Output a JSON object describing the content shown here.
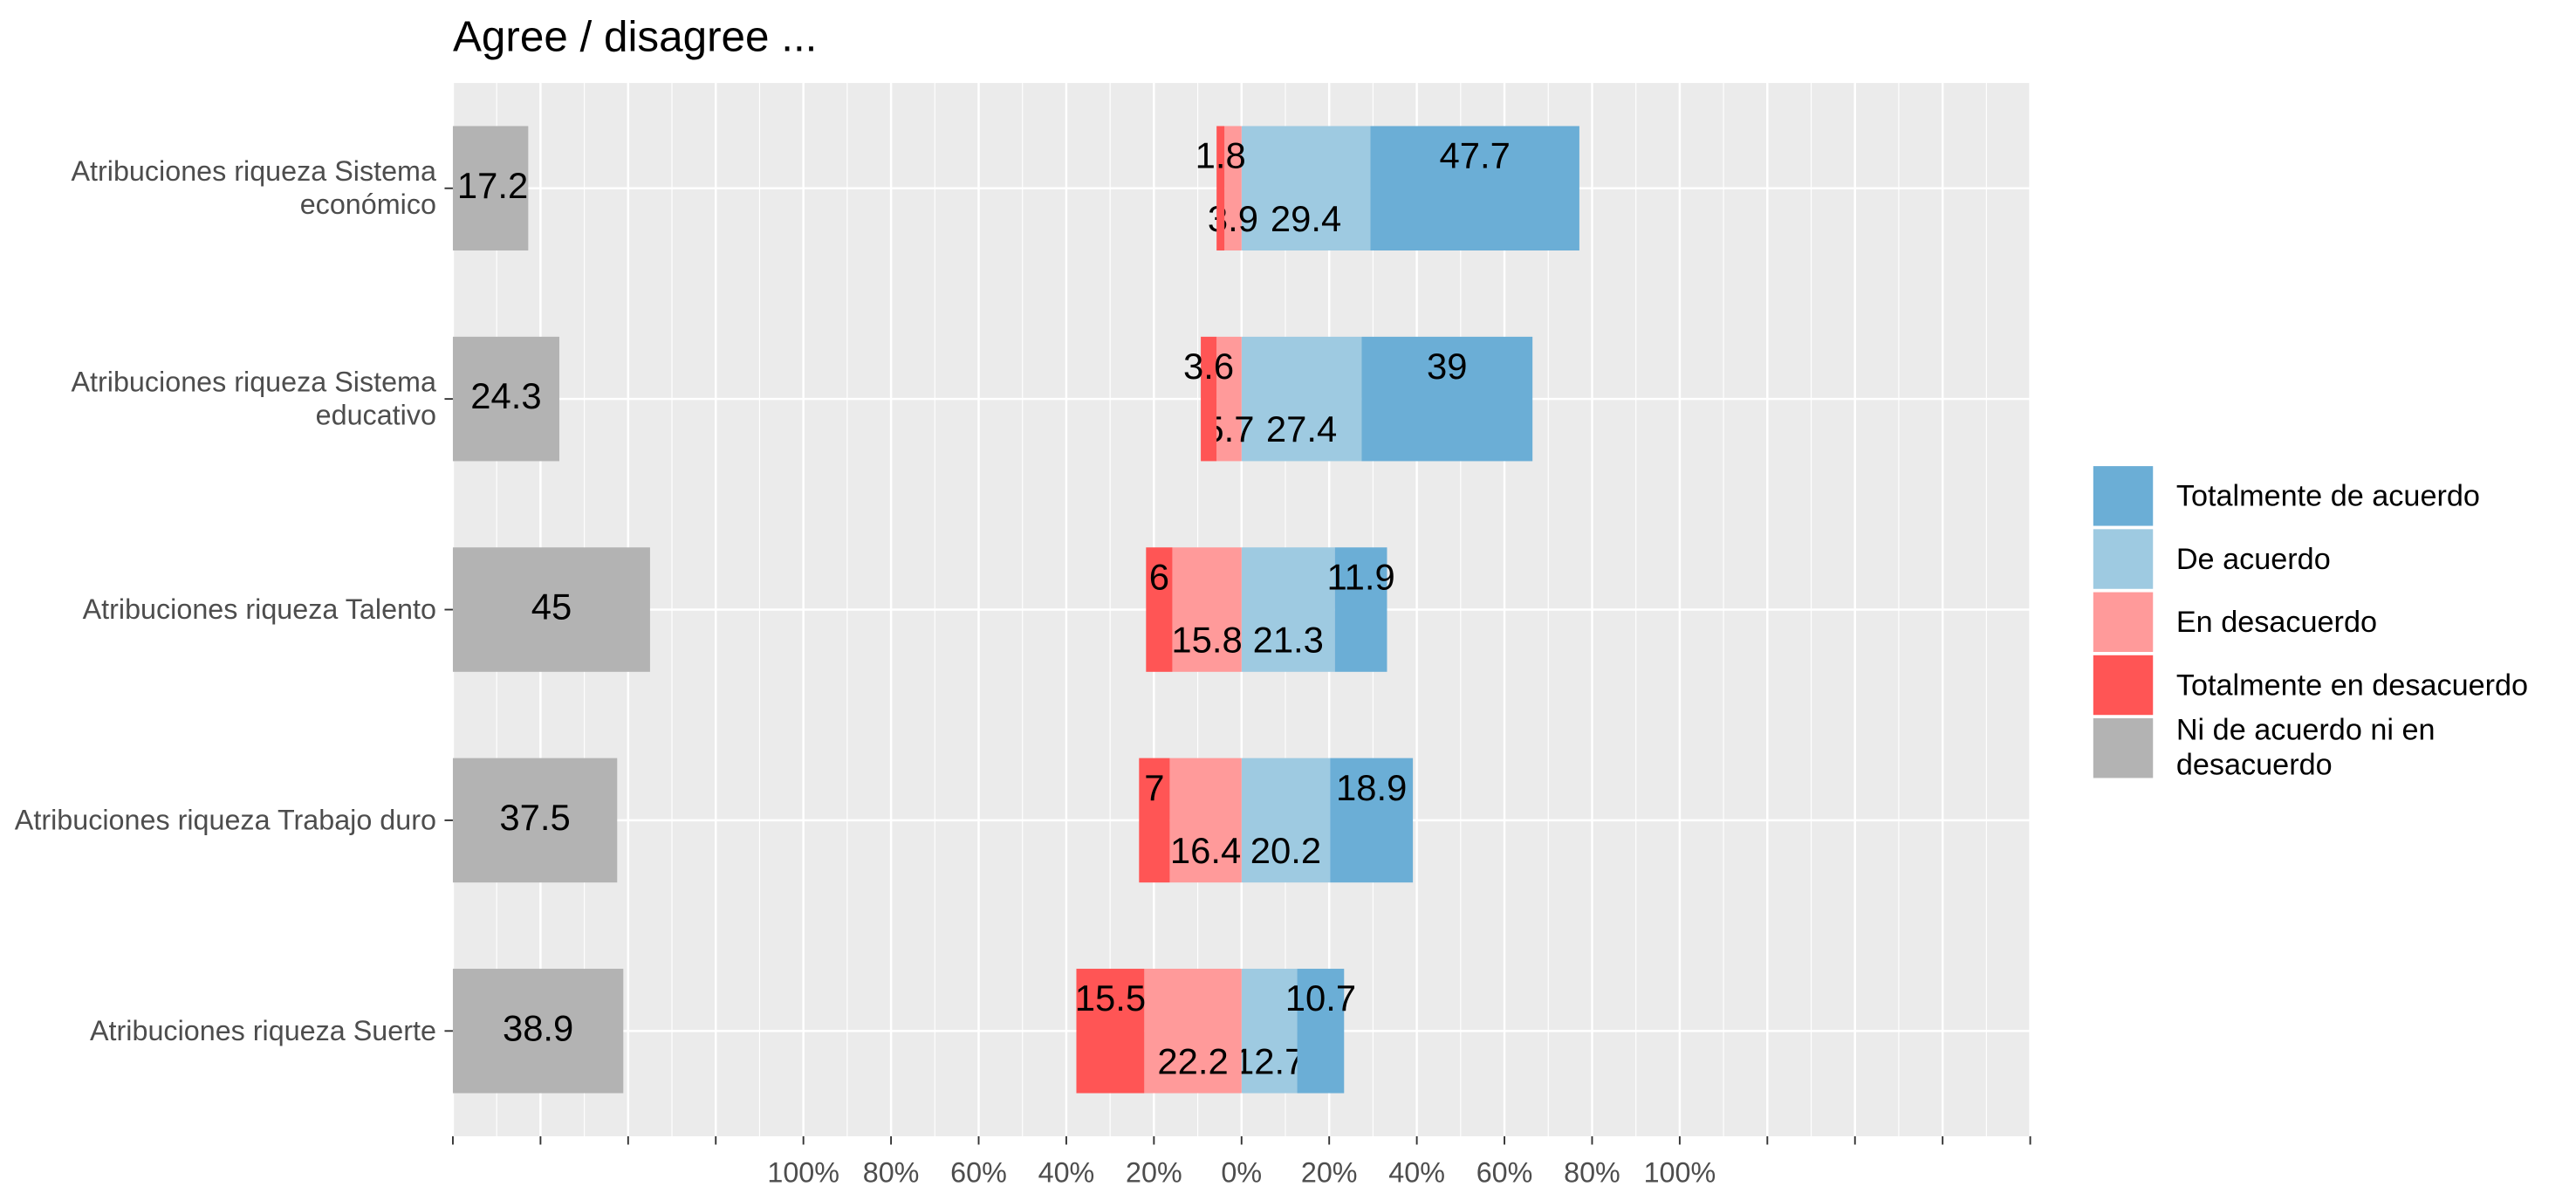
{
  "chart_data": {
    "type": "likert",
    "title": "Agree / disagree ...",
    "categories": [
      "Atribuciones riqueza Sistema económico",
      "Atribuciones riqueza Sistema educativo",
      "Atribuciones riqueza Talento",
      "Atribuciones riqueza Trabajo duro",
      "Atribuciones riqueza Suerte"
    ],
    "series": [
      {
        "name": "Totalmente de acuerdo",
        "color": "#6baed6",
        "values": [
          47.7,
          39.0,
          11.9,
          18.9,
          10.7
        ]
      },
      {
        "name": "De acuerdo",
        "color": "#9ecae1",
        "values": [
          29.4,
          27.4,
          21.3,
          20.2,
          12.7
        ]
      },
      {
        "name": "En desacuerdo",
        "color": "#ff9a9a",
        "values": [
          3.9,
          5.7,
          15.8,
          16.4,
          22.2
        ]
      },
      {
        "name": "Totalmente en desacuerdo",
        "color": "#ff5555",
        "values": [
          1.8,
          3.6,
          6.0,
          7.0,
          15.5
        ]
      },
      {
        "name": "Ni de acuerdo ni en desacuerdo",
        "color": "#b3b3b3",
        "values": [
          17.2,
          24.3,
          45.0,
          37.5,
          38.9
        ]
      }
    ],
    "xlim": [
      -180,
      180
    ],
    "xticks": [
      {
        "value": -180,
        "label": null
      },
      {
        "value": -160,
        "label": null
      },
      {
        "value": -140,
        "label": null
      },
      {
        "value": -120,
        "label": null
      },
      {
        "value": -100,
        "label": "100%"
      },
      {
        "value": -80,
        "label": "80%"
      },
      {
        "value": -60,
        "label": "60%"
      },
      {
        "value": -40,
        "label": "40%"
      },
      {
        "value": -20,
        "label": "20%"
      },
      {
        "value": 0,
        "label": "0%"
      },
      {
        "value": 20,
        "label": "20%"
      },
      {
        "value": 40,
        "label": "40%"
      },
      {
        "value": 60,
        "label": "60%"
      },
      {
        "value": 80,
        "label": "80%"
      },
      {
        "value": 100,
        "label": "100%"
      },
      {
        "value": 120,
        "label": null
      },
      {
        "value": 140,
        "label": null
      },
      {
        "value": 160,
        "label": null
      },
      {
        "value": 180,
        "label": null
      }
    ],
    "grid": true
  }
}
